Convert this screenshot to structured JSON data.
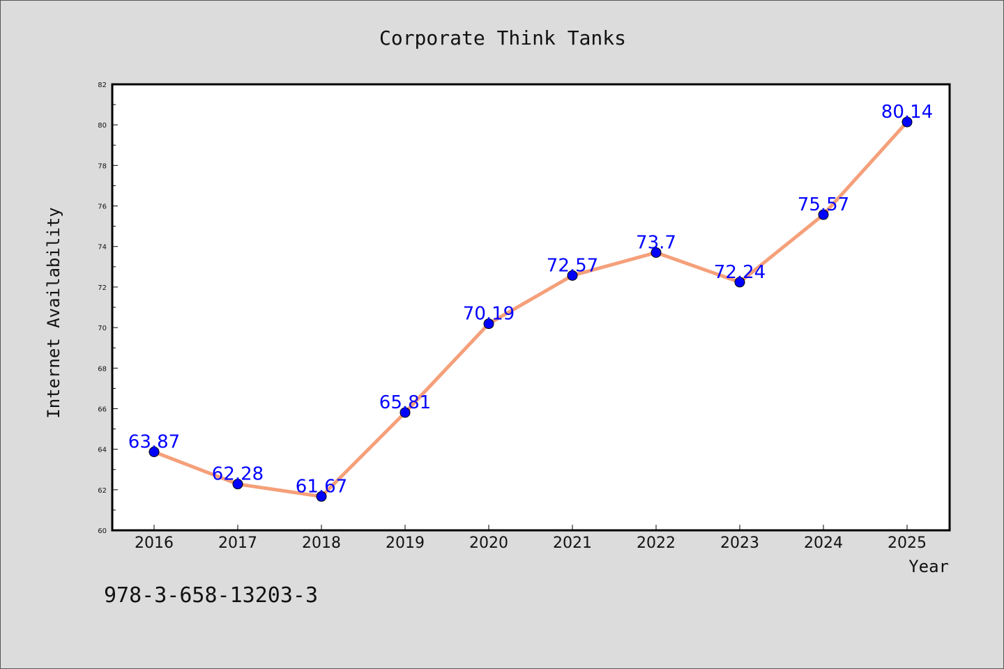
{
  "chart_data": {
    "type": "line",
    "title": "Corporate Think Tanks",
    "xlabel": "Year",
    "ylabel": "Internet Availability",
    "categories": [
      "2016",
      "2017",
      "2018",
      "2019",
      "2020",
      "2021",
      "2022",
      "2023",
      "2024",
      "2025"
    ],
    "series": [
      {
        "values": [
          63.87,
          62.28,
          61.67,
          65.81,
          70.19,
          72.57,
          73.7,
          72.24,
          75.57,
          80.14
        ],
        "labels": [
          "63.87",
          "62.28",
          "61.67",
          "65.81",
          "70.19",
          "72.57",
          "73.7",
          "72.24",
          "75.57",
          "80.14"
        ],
        "line_color": "#f5a07a",
        "marker_color": "#0000ff"
      }
    ],
    "ylim": [
      60,
      82
    ],
    "yticks": [
      "60",
      "62",
      "64",
      "66",
      "68",
      "70",
      "72",
      "74",
      "76",
      "78",
      "80",
      "82"
    ],
    "grid": false,
    "legend": "none"
  },
  "annotation": {
    "isbn": "978-3-658-13203-3"
  }
}
